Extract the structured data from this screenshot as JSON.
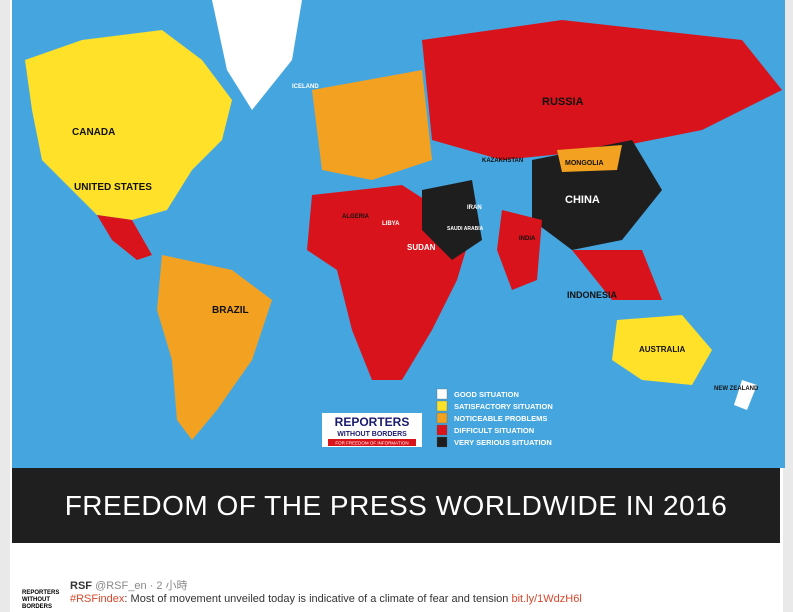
{
  "map": {
    "labels": [
      "CANADA",
      "UNITED STATES",
      "BRAZIL",
      "RUSSIA",
      "CHINA",
      "MONGOLIA",
      "KAZAKHSTAN",
      "IRAN",
      "SUDAN",
      "LIBYA",
      "ALGERIA",
      "INDIA",
      "INDONESIA",
      "AUSTRALIA",
      "NEW ZEALAND",
      "ICELAND",
      "SAUDI ARABIA"
    ],
    "legend": [
      {
        "label": "GOOD SITUATION",
        "color": "#ffffff"
      },
      {
        "label": "SATISFACTORY SITUATION",
        "color": "#ffe12a"
      },
      {
        "label": "NOTICEABLE PROBLEMS",
        "color": "#f3a120"
      },
      {
        "label": "DIFFICULT SITUATION",
        "color": "#d9131b"
      },
      {
        "label": "VERY SERIOUS SITUATION",
        "color": "#1e1e1e"
      }
    ],
    "logo": {
      "line1": "REPORTERS",
      "line2": "WITHOUT BORDERS",
      "tagline": "FOR FREEDOM OF INFORMATION"
    }
  },
  "banner": "FREEDOM OF THE PRESS WORLDWIDE IN 2016",
  "tweet": {
    "author": "RSF",
    "handle": "@RSF_en",
    "time": "· 2 小時",
    "hashtag": "#RSFindex",
    "text": ": Most of movement unveiled today is indicative of a climate of fear and tension ",
    "link": "bit.ly/1WdzH6l",
    "avatar": "REPORTERS WITHOUT BORDERS"
  }
}
